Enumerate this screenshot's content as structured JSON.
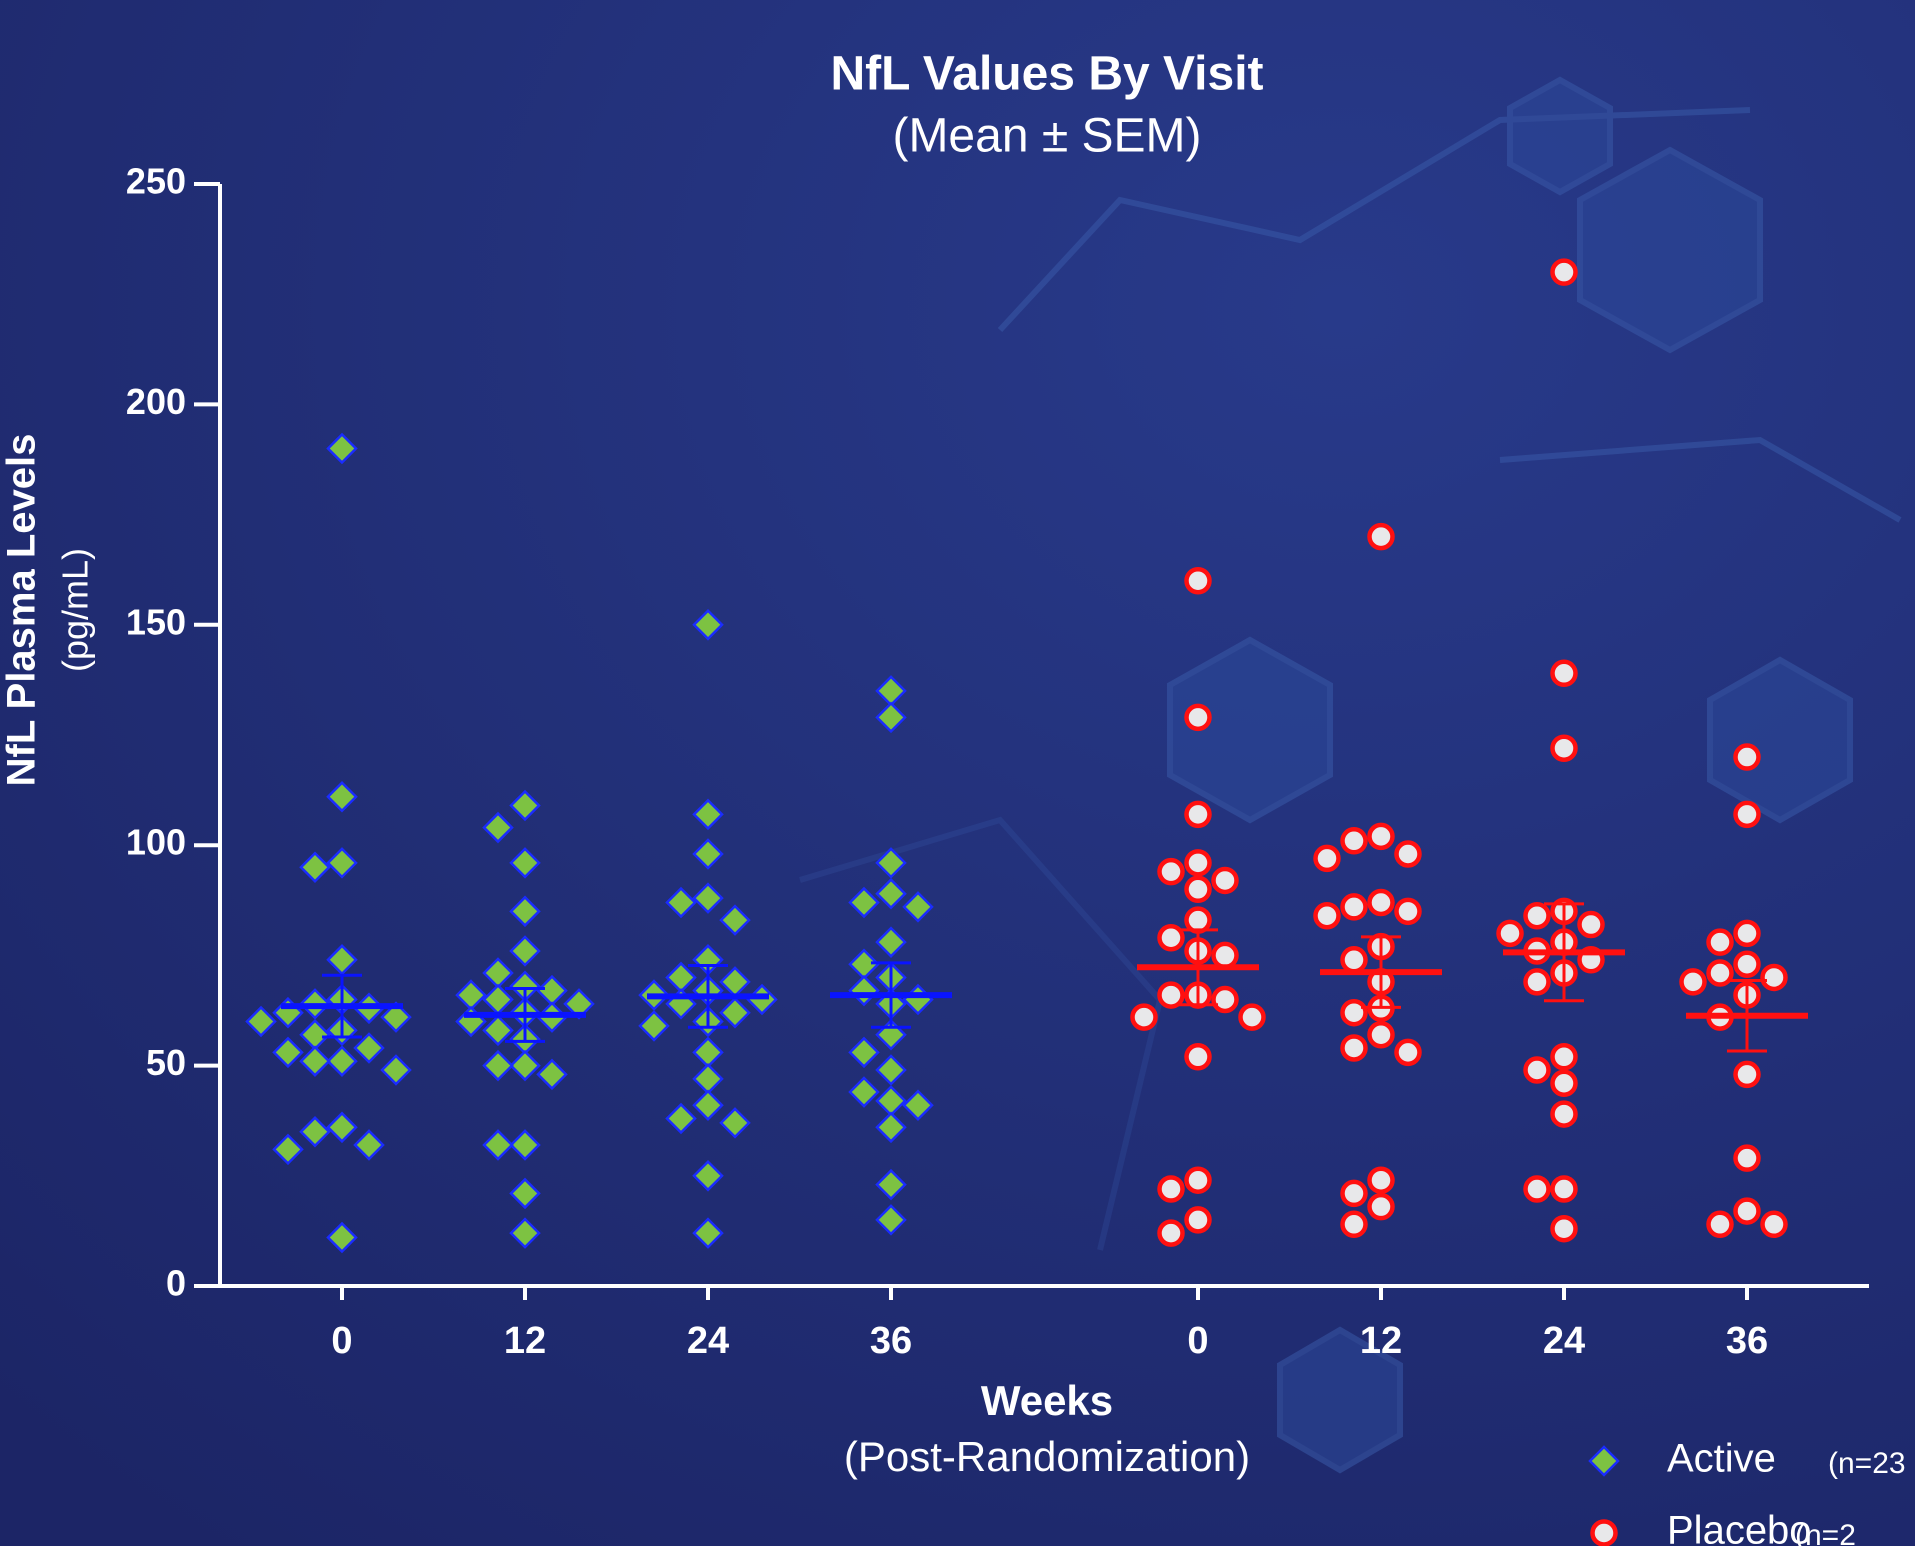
{
  "chart_data": {
    "type": "dot",
    "title": "NfL Values By Visit",
    "subtitle": "(Mean ± SEM)",
    "y_label": "NfL Plasma Levels",
    "y_unit": "(pg/mL)",
    "x_label": "Weeks",
    "x_sublabel": "(Post-Randomization)",
    "categories": [
      "0",
      "12",
      "24",
      "36"
    ],
    "ylim": [
      0,
      250
    ],
    "yticks": [
      0,
      50,
      100,
      150,
      200,
      250
    ],
    "series": [
      {
        "name": "Active",
        "note": "(n=23",
        "marker": "diamond",
        "color": "#7dc242",
        "edge_color": "#1a2cff",
        "mean_color": "#0a14ff",
        "groups": [
          [
            190,
            111,
            96,
            95,
            74,
            65,
            64,
            63,
            62,
            61,
            60,
            58,
            57,
            54,
            53,
            51,
            51,
            49,
            36,
            35,
            32,
            31,
            11
          ],
          [
            109,
            104,
            96,
            85,
            76,
            71,
            68,
            67,
            66,
            65,
            64,
            62,
            61,
            60,
            58,
            56,
            50,
            50,
            48,
            32,
            32,
            21,
            12
          ],
          [
            150,
            107,
            98,
            88,
            87,
            83,
            74,
            70,
            69,
            67,
            66,
            65,
            64,
            62,
            60,
            59,
            53,
            47,
            41,
            38,
            37,
            25,
            12
          ],
          [
            135,
            129,
            96,
            89,
            87,
            86,
            78,
            73,
            70,
            67,
            65,
            64,
            57,
            53,
            49,
            44,
            42,
            41,
            36,
            23,
            15
          ]
        ],
        "means": [
          63.5,
          61.5,
          65.7,
          66
        ],
        "sems": [
          7,
          6,
          7,
          7.3
        ]
      },
      {
        "name": "Placebo",
        "note": "(n=2",
        "marker": "circle",
        "color": "#e8e8ea",
        "edge_color": "#ff1010",
        "mean_color": "#ff1010",
        "groups": [
          [
            160,
            129,
            107,
            96,
            94,
            92,
            90,
            83,
            79,
            76,
            75,
            66,
            66,
            65,
            61,
            61,
            52,
            24,
            22,
            15,
            12
          ],
          [
            170,
            102,
            101,
            98,
            97,
            87,
            86,
            85,
            84,
            77,
            74,
            69,
            63,
            62,
            57,
            54,
            53,
            24,
            21,
            18,
            14
          ],
          [
            230,
            139,
            122,
            85,
            84,
            82,
            80,
            78,
            76,
            74,
            71,
            69,
            52,
            49,
            46,
            39,
            22,
            22,
            13
          ],
          [
            120,
            107,
            80,
            78,
            73,
            71,
            70,
            69,
            66,
            61,
            48,
            29,
            17,
            14,
            14
          ]
        ],
        "means": [
          72.3,
          71.2,
          75.7,
          61.3
        ],
        "sems": [
          8.5,
          8,
          11,
          8
        ]
      }
    ]
  }
}
